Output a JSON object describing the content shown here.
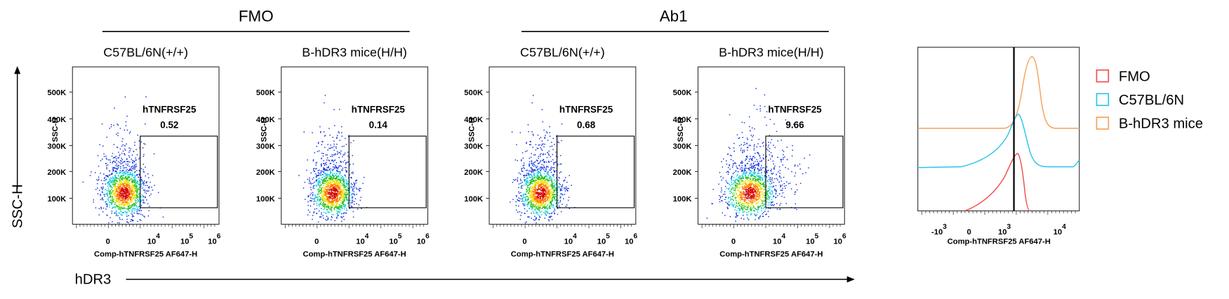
{
  "groups": [
    {
      "title": "FMO"
    },
    {
      "title": "Ab1"
    }
  ],
  "panels": [
    {
      "title": "C57BL/6N(+/+)",
      "gate_label": "hTNFRSF25",
      "gate_value": 0.52
    },
    {
      "title": "B-hDR3 mice(H/H)",
      "gate_label": "hTNFRSF25",
      "gate_value": 0.14
    },
    {
      "title": "C57BL/6N(+/+)",
      "gate_label": "hTNFRSF25",
      "gate_value": 0.68
    },
    {
      "title": "B-hDR3 mice(H/H)",
      "gate_label": "hTNFRSF25",
      "gate_value": 9.66
    }
  ],
  "scatter_axes": {
    "y_label": "SSC-H",
    "y_ticks": [
      "500K",
      "400K",
      "300K",
      "200K",
      "100K"
    ],
    "x_label": "Comp-hTNFRSF25 AF647-H",
    "x_ticks": [
      {
        "base": "0"
      },
      {
        "base": "10",
        "exp": "4"
      },
      {
        "base": "10",
        "exp": "5"
      },
      {
        "base": "10",
        "exp": "6"
      }
    ]
  },
  "axis_titles": {
    "y": "SSC-H",
    "x": "hDR3"
  },
  "histogram": {
    "x_label": "Comp-hTNFRSF25 AF647-H",
    "x_ticks": [
      {
        "base": "-10",
        "exp": "3"
      },
      {
        "base": "0"
      },
      {
        "base": "10",
        "exp": "3"
      },
      {
        "base": "10",
        "exp": "4"
      }
    ],
    "legend": [
      {
        "name": "FMO",
        "color": "#f0504f"
      },
      {
        "name": "C57BL/6N",
        "color": "#2ec4ea"
      },
      {
        "name": "B-hDR3 mice",
        "color": "#f5a25a"
      }
    ]
  }
}
